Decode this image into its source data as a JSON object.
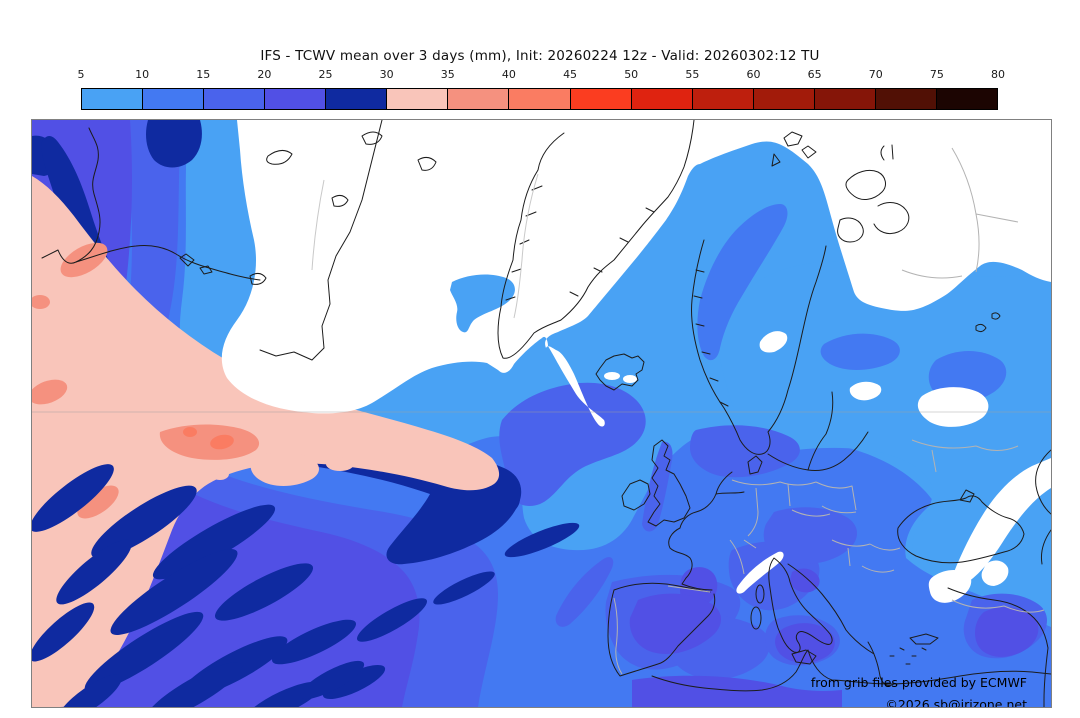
{
  "title": "IFS - TCWV mean over 3 days (mm), Init: 20260224 12z - Valid: 20260302:12 TU",
  "colorbar": {
    "unit": "mm",
    "tick_labels": [
      "5",
      "10",
      "15",
      "20",
      "25",
      "30",
      "35",
      "40",
      "45",
      "50",
      "55",
      "60",
      "65",
      "70",
      "75",
      "80"
    ],
    "segments": [
      {
        "range": "5-10",
        "color": "#49A2F4"
      },
      {
        "range": "10-15",
        "color": "#4379F2"
      },
      {
        "range": "15-20",
        "color": "#4A63EC"
      },
      {
        "range": "20-25",
        "color": "#5150E5"
      },
      {
        "range": "25-30",
        "color": "#0F2AA0"
      },
      {
        "range": "30-35",
        "color": "#F9C5BA"
      },
      {
        "range": "35-40",
        "color": "#F5917F"
      },
      {
        "range": "40-45",
        "color": "#FA7C62"
      },
      {
        "range": "45-50",
        "color": "#FB3D20"
      },
      {
        "range": "50-55",
        "color": "#DF2310"
      },
      {
        "range": "55-60",
        "color": "#BE1F0D"
      },
      {
        "range": "60-65",
        "color": "#A21B0A"
      },
      {
        "range": "65-70",
        "color": "#851508"
      },
      {
        "range": "70-75",
        "color": "#511005"
      },
      {
        "range": "75-80",
        "color": "#1C0502"
      }
    ]
  },
  "map": {
    "attribution_line1": "from grib files provided by ECMWF",
    "attribution_line2": "©2026 sb@irizone.net",
    "colors": {
      "lt": "#49A2F4",
      "md": "#4379F2",
      "b15": "#4A63EC",
      "b20": "#5150E5",
      "navy": "#0F2AA0",
      "p30": "#F9C5BA",
      "p35": "#F5917F",
      "p40": "#FA7C62",
      "white": "#FFFFFF"
    }
  }
}
